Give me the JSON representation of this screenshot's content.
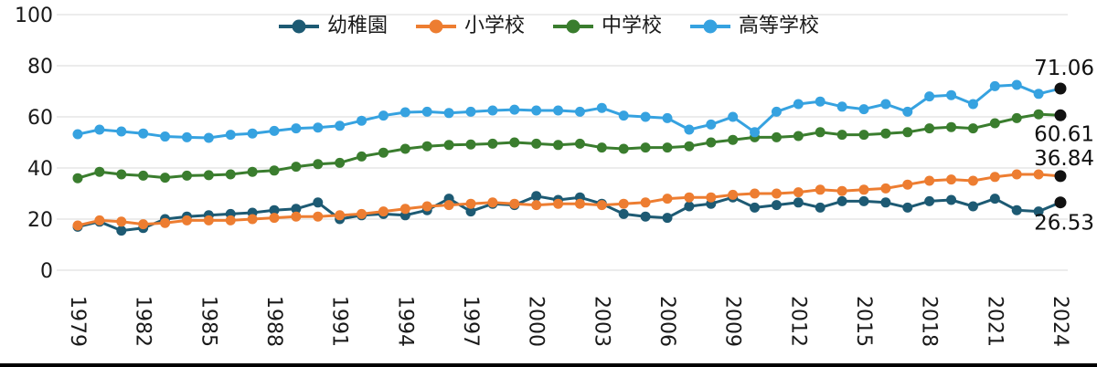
{
  "chart_data": {
    "type": "line",
    "title": "",
    "xlabel": "",
    "ylabel": "",
    "ylim": [
      0,
      100
    ],
    "yticks": [
      0,
      20,
      40,
      60,
      80,
      100
    ],
    "grid": true,
    "legend_position": "top",
    "x_tick_step": 3,
    "x": [
      1979,
      1980,
      1981,
      1982,
      1983,
      1984,
      1985,
      1986,
      1987,
      1988,
      1989,
      1990,
      1991,
      1992,
      1993,
      1994,
      1995,
      1996,
      1997,
      1998,
      1999,
      2000,
      2001,
      2002,
      2003,
      2004,
      2005,
      2006,
      2007,
      2008,
      2009,
      2010,
      2011,
      2012,
      2013,
      2014,
      2015,
      2016,
      2017,
      2018,
      2019,
      2020,
      2021,
      2022,
      2023,
      2024
    ],
    "series": [
      {
        "name": "幼稚園",
        "color": "#1d5a73",
        "end_label": "26.53",
        "values": [
          17.0,
          19.0,
          15.5,
          16.5,
          20.0,
          21.0,
          21.5,
          22.0,
          22.5,
          23.5,
          24.0,
          26.5,
          20.0,
          21.5,
          22.0,
          21.5,
          23.5,
          28.0,
          23.0,
          26.0,
          25.5,
          29.0,
          27.5,
          28.5,
          26.0,
          22.0,
          21.0,
          20.5,
          25.0,
          26.0,
          28.5,
          24.5,
          25.5,
          26.5,
          24.5,
          27.0,
          27.0,
          26.5,
          24.5,
          27.0,
          27.5,
          25.0,
          28.0,
          23.5,
          23.0,
          26.53
        ]
      },
      {
        "name": "小学校",
        "color": "#ed7d31",
        "end_label": "36.84",
        "values": [
          17.5,
          19.5,
          19.0,
          18.0,
          18.5,
          19.5,
          19.5,
          19.5,
          20.0,
          20.5,
          21.0,
          21.0,
          21.5,
          22.0,
          23.0,
          24.0,
          25.0,
          25.5,
          26.0,
          26.5,
          26.0,
          25.5,
          26.0,
          26.0,
          25.5,
          26.0,
          26.5,
          28.0,
          28.5,
          28.5,
          29.5,
          30.0,
          30.0,
          30.5,
          31.5,
          31.0,
          31.5,
          32.0,
          33.5,
          35.0,
          35.5,
          35.0,
          36.5,
          37.5,
          37.5,
          36.84
        ]
      },
      {
        "name": "中学校",
        "color": "#3a7d2e",
        "end_label": "60.61",
        "values": [
          36.0,
          38.5,
          37.5,
          37.0,
          36.2,
          37.0,
          37.2,
          37.5,
          38.5,
          39.0,
          40.5,
          41.5,
          42.0,
          44.5,
          46.0,
          47.5,
          48.5,
          49.0,
          49.2,
          49.5,
          50.0,
          49.5,
          49.0,
          49.5,
          48.0,
          47.5,
          48.0,
          48.0,
          48.5,
          50.0,
          51.0,
          52.0,
          52.0,
          52.5,
          54.0,
          53.0,
          53.0,
          53.5,
          54.0,
          55.5,
          56.0,
          55.5,
          57.5,
          59.5,
          61.0,
          60.61
        ]
      },
      {
        "name": "高等学校",
        "color": "#36a2e0",
        "end_label": "71.06",
        "values": [
          53.2,
          55.0,
          54.3,
          53.5,
          52.3,
          52.0,
          51.8,
          53.0,
          53.5,
          54.5,
          55.5,
          55.8,
          56.5,
          58.5,
          60.5,
          61.8,
          62.0,
          61.5,
          62.0,
          62.5,
          62.8,
          62.5,
          62.5,
          62.0,
          63.5,
          60.5,
          60.0,
          59.5,
          55.0,
          57.0,
          60.0,
          54.0,
          62.0,
          65.0,
          66.0,
          64.0,
          63.0,
          65.0,
          62.0,
          68.0,
          68.5,
          65.0,
          72.0,
          72.5,
          69.0,
          71.06
        ]
      }
    ],
    "colors": {
      "axis_text": "#1a1a1a",
      "gridline": "#d9d9d9",
      "last_point": "#111111",
      "bottom_rule": "#000000"
    }
  }
}
